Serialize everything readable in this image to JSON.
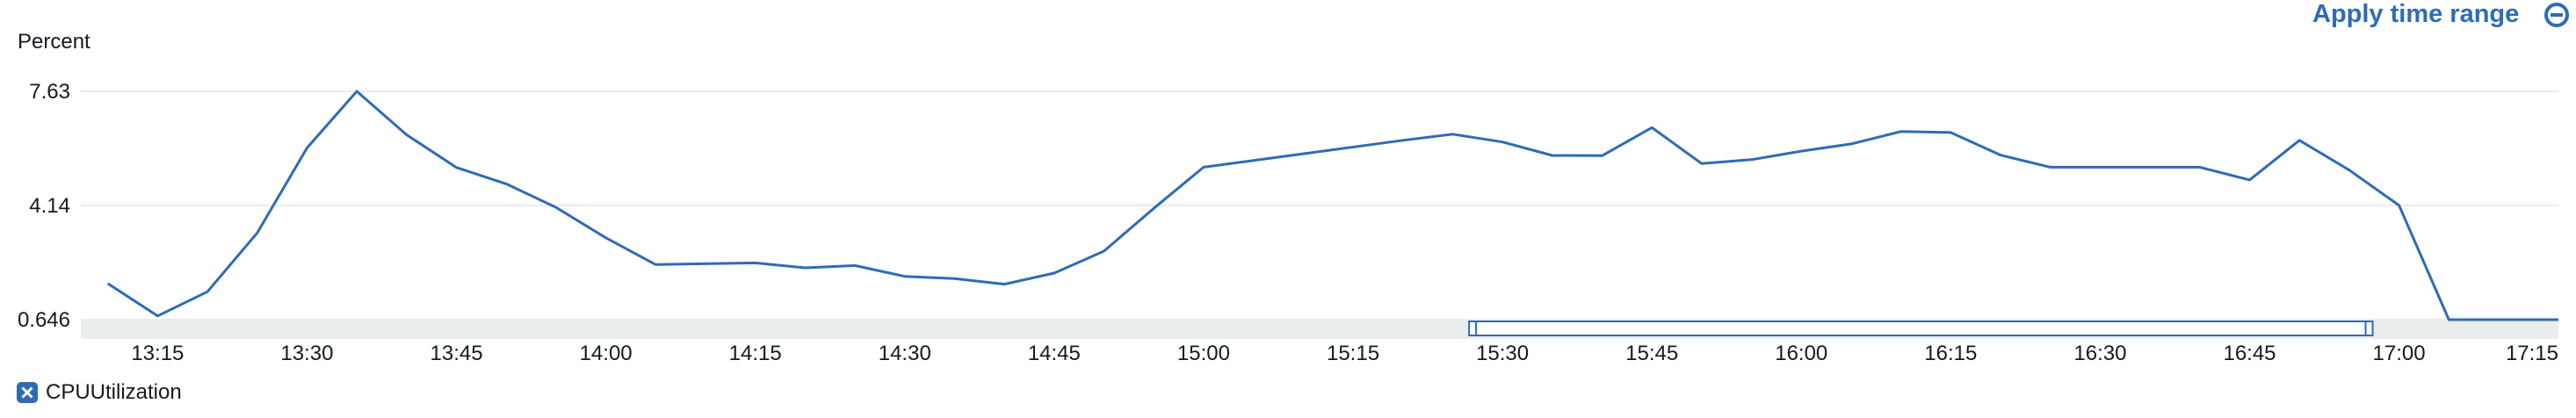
{
  "header": {
    "apply_time_range": "Apply time range"
  },
  "legend": {
    "items": [
      {
        "label": "CPUUtilization",
        "icon": "close-icon",
        "color": "#2f6bb5"
      }
    ]
  },
  "colors": {
    "series": "#2f6bb5",
    "link": "#2f6bb5",
    "gridline": "#e9ebed",
    "scrollbar_track": "#eaeded"
  },
  "chart_data": {
    "type": "line",
    "ylabel": "Percent",
    "xlabel": "",
    "yticks": [
      "7.63",
      "4.14",
      "0.646"
    ],
    "ylim": [
      0.646,
      7.63
    ],
    "xticks": [
      "13:15",
      "13:30",
      "13:45",
      "14:00",
      "14:15",
      "14:30",
      "14:45",
      "15:00",
      "15:15",
      "15:30",
      "15:45",
      "16:00",
      "16:15",
      "16:30",
      "16:45",
      "17:00",
      "17:15"
    ],
    "xlim": [
      "13:08",
      "17:16"
    ],
    "grid": true,
    "legend_position": "bottom-left",
    "series": [
      {
        "name": "CPUUtilization",
        "x": [
          "13:10",
          "13:15",
          "13:20",
          "13:25",
          "13:30",
          "13:35",
          "13:40",
          "13:45",
          "13:50",
          "13:55",
          "14:00",
          "14:05",
          "14:15",
          "14:20",
          "14:25",
          "14:30",
          "14:35",
          "14:40",
          "14:45",
          "14:50",
          "14:55",
          "15:00",
          "15:10",
          "15:20",
          "15:25",
          "15:30",
          "15:35",
          "15:40",
          "15:45",
          "15:50",
          "15:55",
          "16:00",
          "16:05",
          "16:10",
          "16:15",
          "16:20",
          "16:25",
          "16:30",
          "16:35",
          "16:40",
          "16:45",
          "16:50",
          "16:55",
          "17:00",
          "17:05",
          "17:10",
          "17:16"
        ],
        "values": [
          1.75,
          0.76,
          1.5,
          3.3,
          5.9,
          7.63,
          6.3,
          5.3,
          4.8,
          4.08,
          3.15,
          2.33,
          2.38,
          2.23,
          2.3,
          1.97,
          1.9,
          1.73,
          2.07,
          2.74,
          4.05,
          5.31,
          5.72,
          6.13,
          6.32,
          6.08,
          5.67,
          5.66,
          6.52,
          5.42,
          5.54,
          5.8,
          6.02,
          6.4,
          6.37,
          5.68,
          5.31,
          5.31,
          5.31,
          5.31,
          4.92,
          6.13,
          5.22,
          4.14,
          0.646,
          0.646,
          0.646
        ]
      }
    ]
  }
}
